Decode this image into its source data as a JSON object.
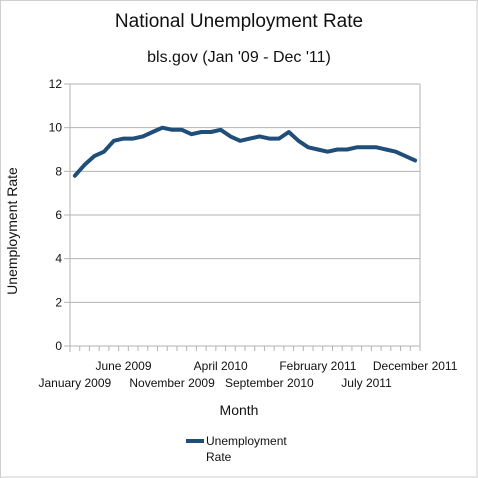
{
  "chart_data": {
    "type": "line",
    "title": "National Unemployment Rate",
    "subtitle": "bls.gov (Jan '09 - Dec '11)",
    "xlabel": "Month",
    "ylabel": "Unemployment Rate",
    "ylim": [
      0,
      12
    ],
    "yticks": [
      0,
      2,
      4,
      6,
      8,
      10,
      12
    ],
    "grid": true,
    "legend_placement": "bottom",
    "x": [
      "January 2009",
      "February 2009",
      "March 2009",
      "April 2009",
      "May 2009",
      "June 2009",
      "July 2009",
      "August 2009",
      "September 2009",
      "October 2009",
      "November 2009",
      "December 2009",
      "January 2010",
      "February 2010",
      "March 2010",
      "April 2010",
      "May 2010",
      "June 2010",
      "July 2010",
      "August 2010",
      "September 2010",
      "October 2010",
      "November 2010",
      "December 2010",
      "January 2011",
      "February 2011",
      "March 2011",
      "April 2011",
      "May 2011",
      "June 2011",
      "July 2011",
      "August 2011",
      "September 2011",
      "October 2011",
      "November 2011",
      "December 2011"
    ],
    "x_tick_labels_row1": [
      {
        "index": 5,
        "label": "June 2009"
      },
      {
        "index": 15,
        "label": "April 2010"
      },
      {
        "index": 25,
        "label": "February 2011"
      },
      {
        "index": 35,
        "label": "December 2011"
      }
    ],
    "x_tick_labels_row2": [
      {
        "index": 0,
        "label": "January 2009"
      },
      {
        "index": 10,
        "label": "November 2009"
      },
      {
        "index": 20,
        "label": "September 2010"
      },
      {
        "index": 30,
        "label": "July 2011"
      }
    ],
    "series": [
      {
        "name": "Unemployment Rate",
        "color": "#1f4e79",
        "values": [
          7.8,
          8.3,
          8.7,
          8.9,
          9.4,
          9.5,
          9.5,
          9.6,
          9.8,
          10.0,
          9.9,
          9.9,
          9.7,
          9.8,
          9.8,
          9.9,
          9.6,
          9.4,
          9.5,
          9.6,
          9.5,
          9.5,
          9.8,
          9.4,
          9.1,
          9.0,
          8.9,
          9.0,
          9.0,
          9.1,
          9.1,
          9.1,
          9.0,
          8.9,
          8.7,
          8.5
        ]
      }
    ],
    "legend": [
      "Unemployment",
      "Rate"
    ]
  }
}
